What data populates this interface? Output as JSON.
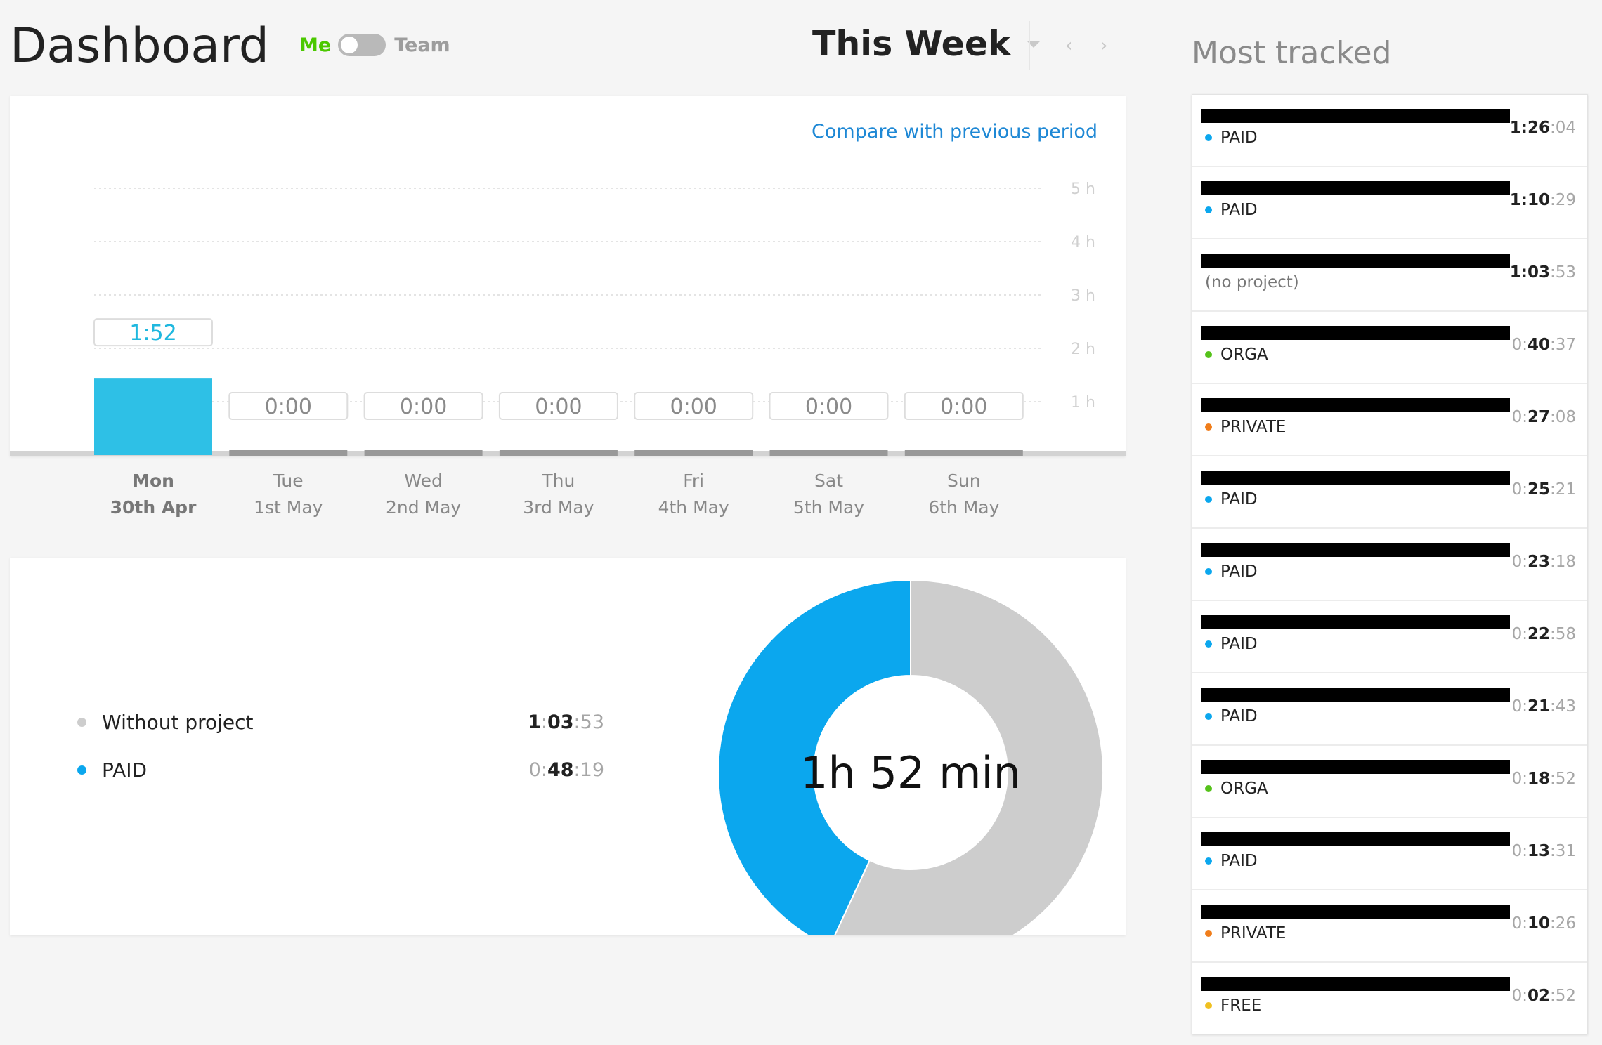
{
  "header": {
    "title": "Dashboard",
    "toggle": {
      "left_label": "Me",
      "right_label": "Team",
      "active": "Me"
    },
    "period": "This Week",
    "prev_icon": "chevron-left-icon",
    "next_icon": "chevron-right-icon"
  },
  "bar_card": {
    "compare_link": "Compare with previous period"
  },
  "colors": {
    "accent_bar": "#2ec0e6",
    "accent_label": "#1fb8df",
    "paid": "#0ba7ee",
    "without_project": "#cdcdcd",
    "orga": "#55c21a",
    "private": "#f07d1a",
    "free": "#f0c020",
    "me_green": "#4bc800"
  },
  "chart_data": [
    {
      "type": "bar",
      "categories": [
        "Mon 30th Apr",
        "Tue 1st May",
        "Wed 2nd May",
        "Thu 3rd May",
        "Fri 4th May",
        "Sat 5th May",
        "Sun 6th May"
      ],
      "days": [
        {
          "weekday": "Mon",
          "date": "30th Apr",
          "label": "1:52",
          "hours": 1.8667,
          "active": true
        },
        {
          "weekday": "Tue",
          "date": "1st May",
          "label": "0:00",
          "hours": 0,
          "active": false
        },
        {
          "weekday": "Wed",
          "date": "2nd May",
          "label": "0:00",
          "hours": 0,
          "active": false
        },
        {
          "weekday": "Thu",
          "date": "3rd May",
          "label": "0:00",
          "hours": 0,
          "active": false
        },
        {
          "weekday": "Fri",
          "date": "4th May",
          "label": "0:00",
          "hours": 0,
          "active": false
        },
        {
          "weekday": "Sat",
          "date": "5th May",
          "label": "0:00",
          "hours": 0,
          "active": false
        },
        {
          "weekday": "Sun",
          "date": "6th May",
          "label": "0:00",
          "hours": 0,
          "active": false
        }
      ],
      "y_ticks": [
        "1 h",
        "2 h",
        "3 h",
        "4 h",
        "5 h"
      ],
      "ylim": [
        0,
        5
      ],
      "grid": true
    },
    {
      "type": "pie",
      "center_label": "1h 52 min",
      "slices": [
        {
          "name": "Without project",
          "h": "1",
          "m": "03",
          "s": "53",
          "seconds": 3833,
          "color": "#cdcdcd"
        },
        {
          "name": "PAID",
          "h": "0",
          "m": "48",
          "s": "19",
          "seconds": 2899,
          "color": "#0ba7ee"
        }
      ]
    }
  ],
  "most_tracked": {
    "title": "Most tracked",
    "items": [
      {
        "project": "PAID",
        "color": "#0ba7ee",
        "h": "1",
        "m": "26",
        "s": "04"
      },
      {
        "project": "PAID",
        "color": "#0ba7ee",
        "h": "1",
        "m": "10",
        "s": "29"
      },
      {
        "project": "(no project)",
        "color": "",
        "h": "1",
        "m": "03",
        "s": "53"
      },
      {
        "project": "ORGA",
        "color": "#55c21a",
        "h": "0",
        "m": "40",
        "s": "37"
      },
      {
        "project": "PRIVATE",
        "color": "#f07d1a",
        "h": "0",
        "m": "27",
        "s": "08"
      },
      {
        "project": "PAID",
        "color": "#0ba7ee",
        "h": "0",
        "m": "25",
        "s": "21"
      },
      {
        "project": "PAID",
        "color": "#0ba7ee",
        "h": "0",
        "m": "23",
        "s": "18"
      },
      {
        "project": "PAID",
        "color": "#0ba7ee",
        "h": "0",
        "m": "22",
        "s": "58"
      },
      {
        "project": "PAID",
        "color": "#0ba7ee",
        "h": "0",
        "m": "21",
        "s": "43"
      },
      {
        "project": "ORGA",
        "color": "#55c21a",
        "h": "0",
        "m": "18",
        "s": "52"
      },
      {
        "project": "PAID",
        "color": "#0ba7ee",
        "h": "0",
        "m": "13",
        "s": "31"
      },
      {
        "project": "PRIVATE",
        "color": "#f07d1a",
        "h": "0",
        "m": "10",
        "s": "26"
      },
      {
        "project": "FREE",
        "color": "#f0c020",
        "h": "0",
        "m": "02",
        "s": "52"
      }
    ]
  }
}
